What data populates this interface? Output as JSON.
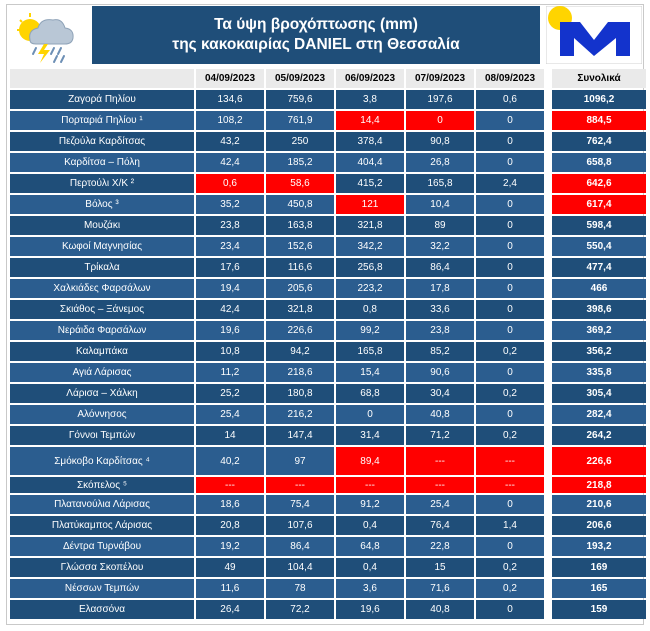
{
  "header": {
    "title_line1": "Τα ύψη βροχόπτωσης (mm)",
    "title_line2": "της κακοκαιρίας DANIEL στη Θεσσαλία"
  },
  "colors": {
    "header_bg": "#1f4e79",
    "row_dark": "#1f4e79",
    "row_light": "#2b5d8f",
    "highlight": "#ff0000",
    "logo_blue": "#1333cc",
    "sun": "#ffd400"
  },
  "icons": {
    "weather": "storm-cloud-icon",
    "logo": "meteo-logo"
  },
  "table": {
    "columns": [
      "04/09/2023",
      "05/09/2023",
      "06/09/2023",
      "07/09/2023",
      "08/09/2023",
      "Συνολικά"
    ],
    "rows": [
      {
        "station": "Ζαγορά Πηλίου",
        "values": [
          "134,6",
          "759,6",
          "3,8",
          "197,6",
          "0,6"
        ],
        "total": "1096,2",
        "red": []
      },
      {
        "station": "Πορταριά Πηλίου ¹",
        "values": [
          "108,2",
          "761,9",
          "14,4",
          "0",
          "0"
        ],
        "total": "884,5",
        "red": [
          2,
          3,
          5
        ]
      },
      {
        "station": "Πεζούλα Καρδίτσας",
        "values": [
          "43,2",
          "250",
          "378,4",
          "90,8",
          "0"
        ],
        "total": "762,4",
        "red": []
      },
      {
        "station": "Καρδίτσα – Πόλη",
        "values": [
          "42,4",
          "185,2",
          "404,4",
          "26,8",
          "0"
        ],
        "total": "658,8",
        "red": []
      },
      {
        "station": "Περτούλι Χ/Κ ²",
        "values": [
          "0,6",
          "58,6",
          "415,2",
          "165,8",
          "2,4"
        ],
        "total": "642,6",
        "red": [
          0,
          1,
          5
        ]
      },
      {
        "station": "Βόλος ³",
        "values": [
          "35,2",
          "450,8",
          "121",
          "10,4",
          "0"
        ],
        "total": "617,4",
        "red": [
          2,
          5
        ]
      },
      {
        "station": "Μουζάκι",
        "values": [
          "23,8",
          "163,8",
          "321,8",
          "89",
          "0"
        ],
        "total": "598,4",
        "red": []
      },
      {
        "station": "Κωφοί Μαγνησίας",
        "values": [
          "23,4",
          "152,6",
          "342,2",
          "32,2",
          "0"
        ],
        "total": "550,4",
        "red": []
      },
      {
        "station": "Τρίκαλα",
        "values": [
          "17,6",
          "116,6",
          "256,8",
          "86,4",
          "0"
        ],
        "total": "477,4",
        "red": []
      },
      {
        "station": "Χαλκιάδες Φαρσάλων",
        "values": [
          "19,4",
          "205,6",
          "223,2",
          "17,8",
          "0"
        ],
        "total": "466",
        "red": []
      },
      {
        "station": "Σκιάθος – Ξάνεμος",
        "values": [
          "42,4",
          "321,8",
          "0,8",
          "33,6",
          "0"
        ],
        "total": "398,6",
        "red": []
      },
      {
        "station": "Νεράιδα Φαρσάλων",
        "values": [
          "19,6",
          "226,6",
          "99,2",
          "23,8",
          "0"
        ],
        "total": "369,2",
        "red": []
      },
      {
        "station": "Καλαμπάκα",
        "values": [
          "10,8",
          "94,2",
          "165,8",
          "85,2",
          "0,2"
        ],
        "total": "356,2",
        "red": []
      },
      {
        "station": "Αγιά Λάρισας",
        "values": [
          "11,2",
          "218,6",
          "15,4",
          "90,6",
          "0"
        ],
        "total": "335,8",
        "red": []
      },
      {
        "station": "Λάρισα – Χάλκη",
        "values": [
          "25,2",
          "180,8",
          "68,8",
          "30,4",
          "0,2"
        ],
        "total": "305,4",
        "red": []
      },
      {
        "station": "Αλόννησος",
        "values": [
          "25,4",
          "216,2",
          "0",
          "40,8",
          "0"
        ],
        "total": "282,4",
        "red": []
      },
      {
        "station": "Γόννοι Τεμπών",
        "values": [
          "14",
          "147,4",
          "31,4",
          "71,2",
          "0,2"
        ],
        "total": "264,2",
        "red": []
      },
      {
        "station": "Σμόκοβο Καρδίτσας ⁴",
        "values": [
          "40,2",
          "97",
          "89,4",
          "---",
          "---"
        ],
        "total": "226,6",
        "red": [
          2,
          3,
          4,
          5
        ]
      },
      {
        "station": "Σκόπελος ⁵",
        "values": [
          "---",
          "---",
          "---",
          "---",
          "---"
        ],
        "total": "218,8",
        "red": [
          0,
          1,
          2,
          3,
          4,
          5
        ]
      },
      {
        "station": "Πλατανούλια Λάρισας",
        "values": [
          "18,6",
          "75,4",
          "91,2",
          "25,4",
          "0"
        ],
        "total": "210,6",
        "red": []
      },
      {
        "station": "Πλατύκαμπος Λάρισας",
        "values": [
          "20,8",
          "107,6",
          "0,4",
          "76,4",
          "1,4"
        ],
        "total": "206,6",
        "red": []
      },
      {
        "station": "Δέντρα Τυρνάβου",
        "values": [
          "19,2",
          "86,4",
          "64,8",
          "22,8",
          "0"
        ],
        "total": "193,2",
        "red": []
      },
      {
        "station": "Γλώσσα Σκοπέλου",
        "values": [
          "49",
          "104,4",
          "0,4",
          "15",
          "0,2"
        ],
        "total": "169",
        "red": []
      },
      {
        "station": "Νέσσων Τεμπών",
        "values": [
          "11,6",
          "78",
          "3,6",
          "71,6",
          "0,2"
        ],
        "total": "165",
        "red": []
      },
      {
        "station": "Ελασσόνα",
        "values": [
          "26,4",
          "72,2",
          "19,6",
          "40,8",
          "0"
        ],
        "total": "159",
        "red": []
      }
    ]
  }
}
